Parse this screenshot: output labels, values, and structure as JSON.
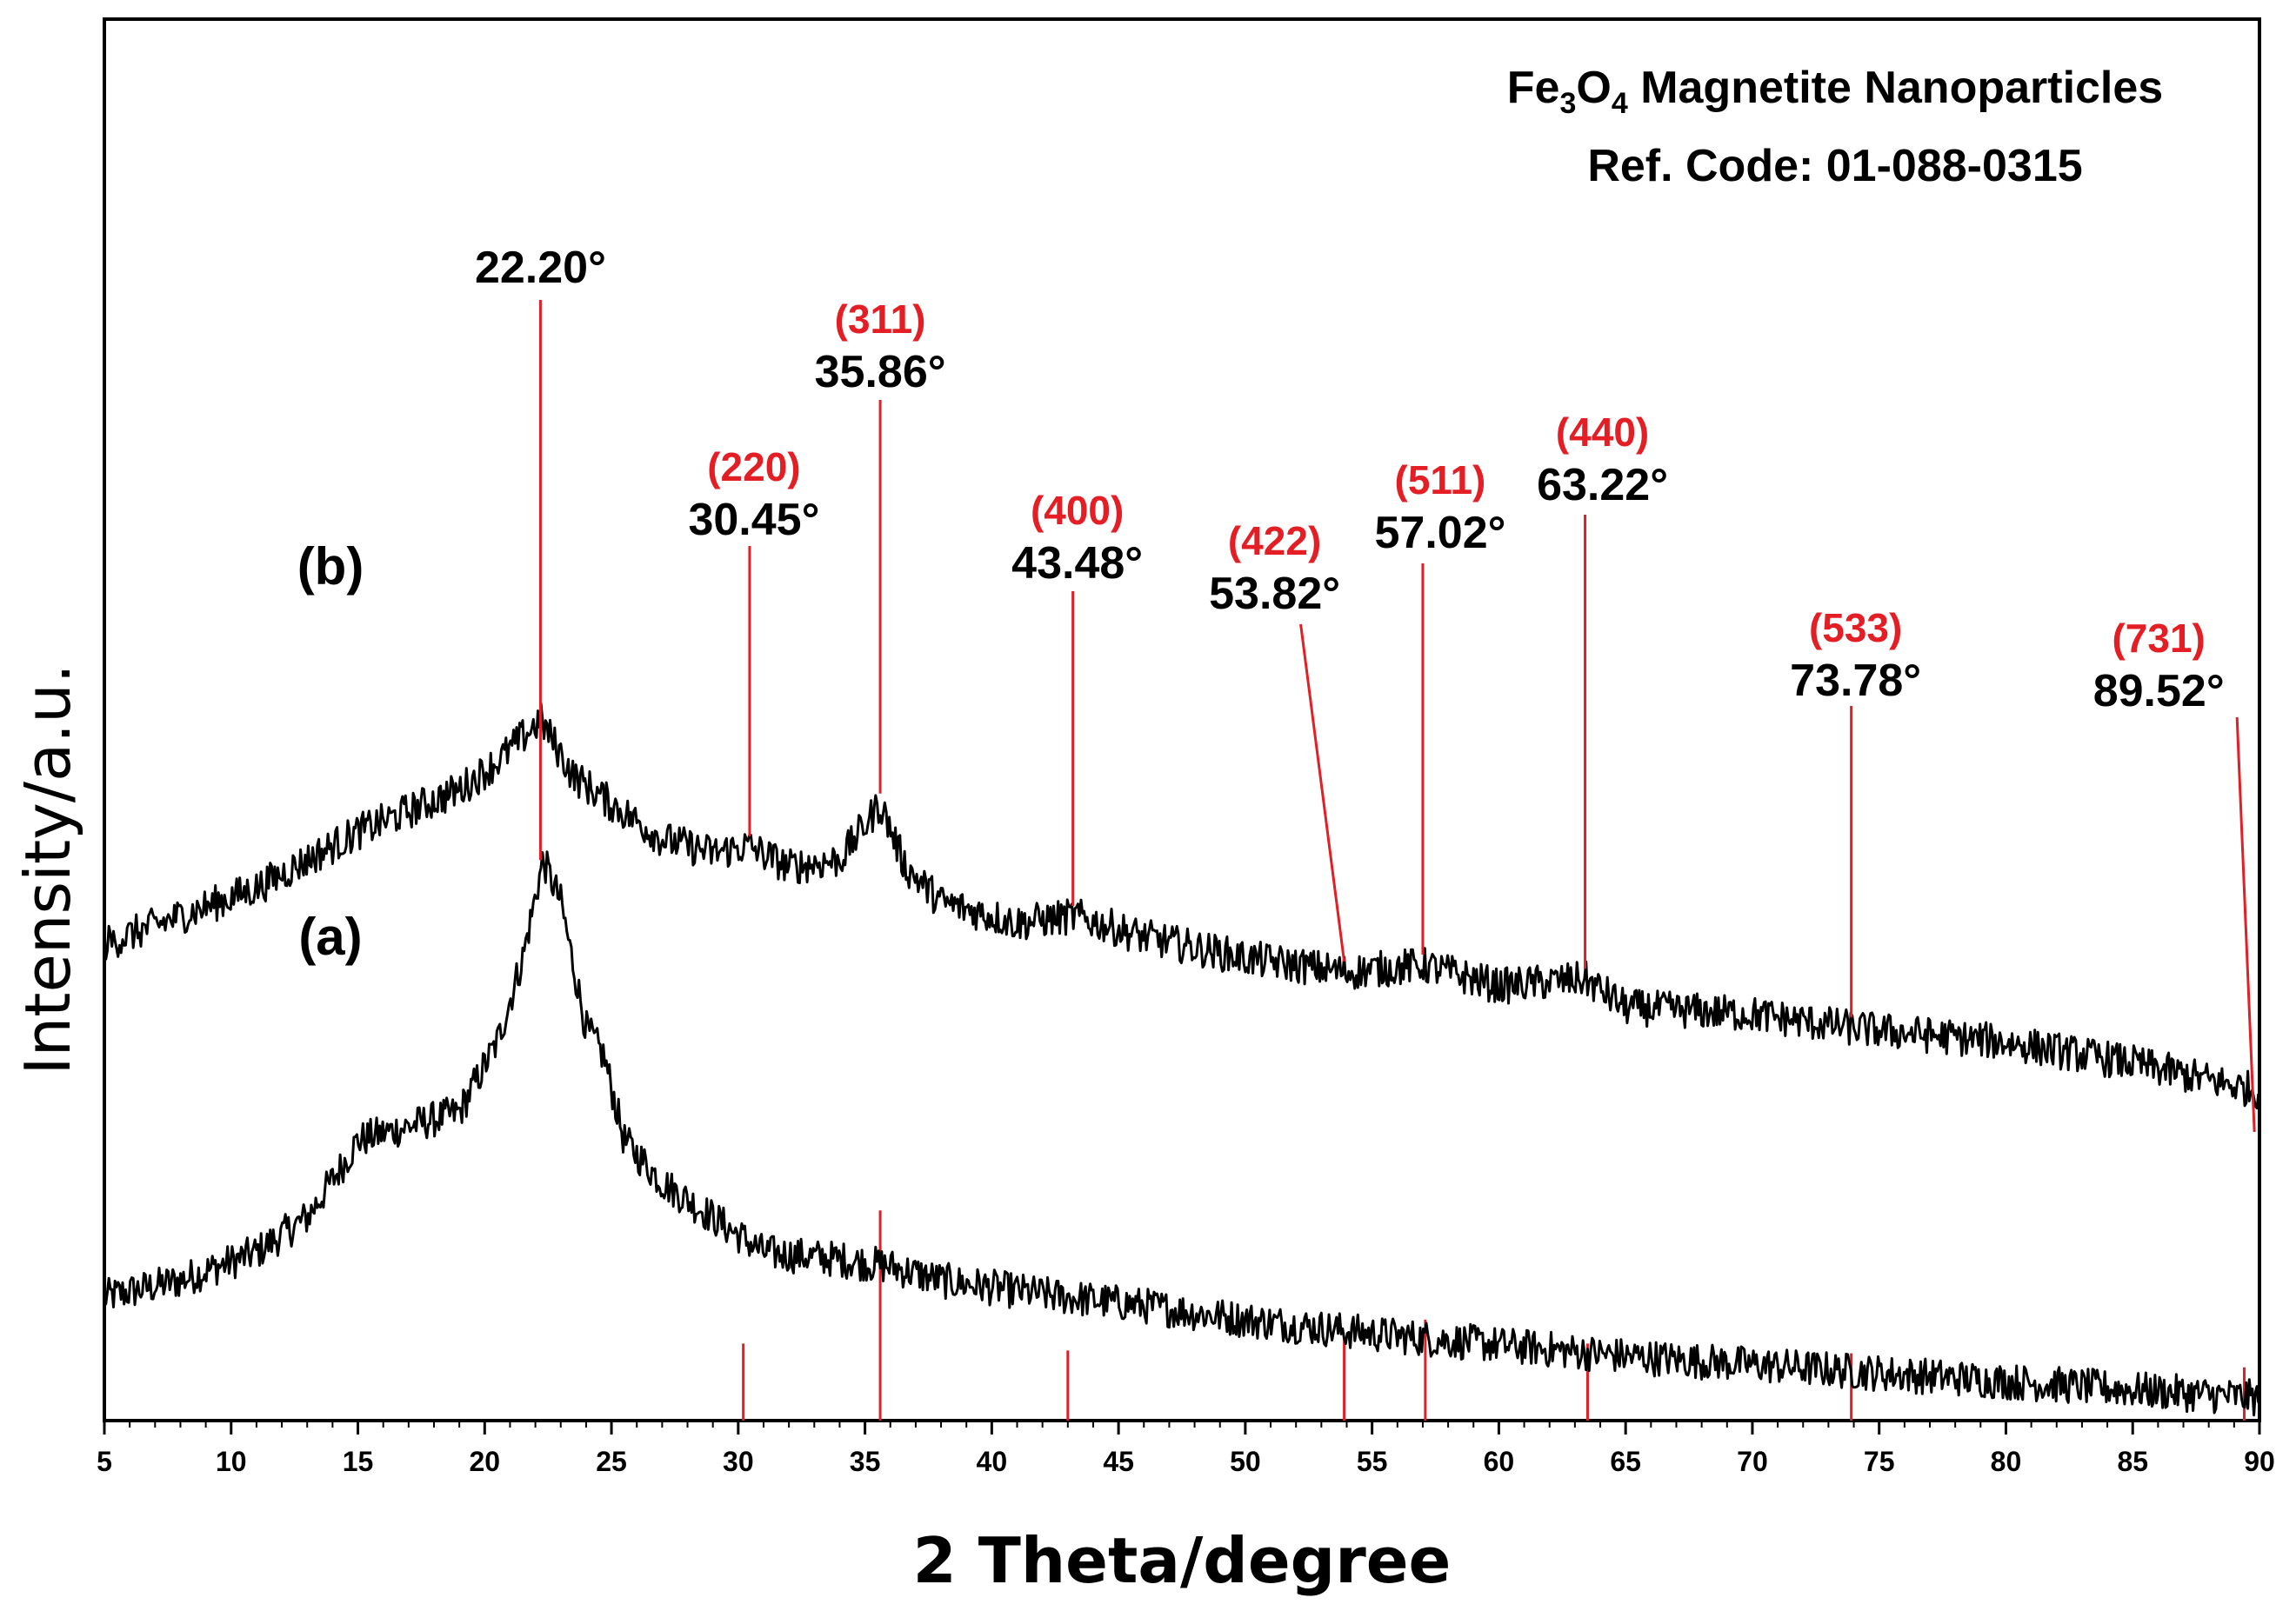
{
  "chart_data": {
    "type": "line",
    "title_line1_prefix": "Fe",
    "title_sub1": "3",
    "title_mid": "O",
    "title_sub2": "4",
    "title_line1_suffix": " Magnetite Nanoparticles",
    "title_line2": "Ref. Code: 01-088-0315",
    "xlabel": "2 Theta/degree",
    "ylabel": "Intensity/a.u.",
    "xlim": [
      5,
      90
    ],
    "x_ticks": [
      "5",
      "10",
      "15",
      "20",
      "25",
      "30",
      "35",
      "40",
      "45",
      "50",
      "55",
      "60",
      "65",
      "70",
      "75",
      "80",
      "85",
      "90"
    ],
    "y_ticks_shown": false,
    "grid": false,
    "reference_color": "#e31e24",
    "series": [
      {
        "name": "(a)",
        "color": "#000000",
        "x": [
          5,
          8,
          11,
          13,
          14.5,
          15,
          17,
          19,
          20.5,
          21.5,
          22.3,
          23,
          24,
          24.7,
          25.5,
          27,
          29,
          31,
          34,
          36,
          38,
          42,
          46,
          50,
          55,
          60,
          65,
          70,
          75,
          80,
          85,
          90
        ],
        "y": [
          0.088,
          0.1,
          0.12,
          0.145,
          0.185,
          0.2,
          0.21,
          0.22,
          0.27,
          0.33,
          0.4,
          0.37,
          0.28,
          0.26,
          0.2,
          0.17,
          0.145,
          0.12,
          0.115,
          0.11,
          0.1,
          0.09,
          0.082,
          0.072,
          0.062,
          0.054,
          0.046,
          0.04,
          0.034,
          0.028,
          0.022,
          0.016
        ]
      },
      {
        "name": "(b)",
        "color": "#000000",
        "x": [
          5,
          8,
          11,
          13,
          15,
          17,
          19,
          20.5,
          22.2,
          23.5,
          25,
          27,
          29,
          30.4,
          32,
          34,
          35.6,
          36.6,
          38,
          41,
          43.3,
          46,
          50,
          54,
          57,
          60,
          63.4,
          65,
          70,
          74,
          80,
          85,
          90
        ],
        "y": [
          0.34,
          0.36,
          0.38,
          0.4,
          0.42,
          0.435,
          0.45,
          0.47,
          0.5,
          0.46,
          0.44,
          0.415,
          0.405,
          0.41,
          0.395,
          0.4,
          0.44,
          0.395,
          0.37,
          0.355,
          0.36,
          0.345,
          0.33,
          0.32,
          0.325,
          0.31,
          0.315,
          0.295,
          0.29,
          0.28,
          0.27,
          0.255,
          0.235
        ]
      }
    ],
    "reference_sticks": [
      {
        "x": 30.2,
        "h": 0.055
      },
      {
        "x": 35.6,
        "h": 0.15
      },
      {
        "x": 43.0,
        "h": 0.05
      },
      {
        "x": 53.9,
        "h": 0.058
      },
      {
        "x": 57.1,
        "h": 0.072
      },
      {
        "x": 63.5,
        "h": 0.055
      },
      {
        "x": 73.9,
        "h": 0.048
      },
      {
        "x": 89.4,
        "h": 0.038
      }
    ],
    "annotations": [
      {
        "hkl": "",
        "angle": "22.20°",
        "x": 22.2
      },
      {
        "hkl": "(220)",
        "angle": "30.45°",
        "x": 30.45
      },
      {
        "hkl": "(311)",
        "angle": "35.86°",
        "x": 35.6
      },
      {
        "hkl": "(400)",
        "angle": "43.48°",
        "x": 43.2
      },
      {
        "hkl": "(422)",
        "angle": "53.82°",
        "x": 53.9
      },
      {
        "hkl": "(511)",
        "angle": "57.02°",
        "x": 57.0
      },
      {
        "hkl": "(440)",
        "angle": "63.22°",
        "x": 63.4
      },
      {
        "hkl": "(533)",
        "angle": "73.78°",
        "x": 73.9
      },
      {
        "hkl": "(731)",
        "angle": "89.52°",
        "x": 89.8
      }
    ]
  }
}
